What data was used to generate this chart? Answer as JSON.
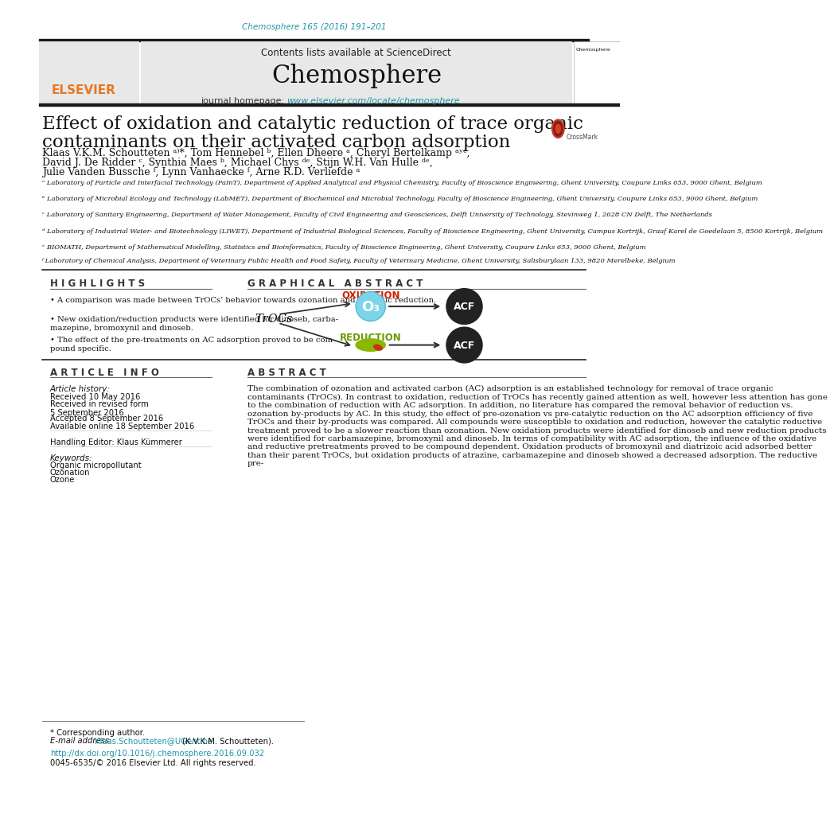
{
  "page_title_top": "Chemosphere 165 (2016) 191–201",
  "header_contents": "Contents lists available at ScienceDirect",
  "header_journal": "Chemosphere",
  "header_homepage_label": "journal homepage:",
  "header_homepage_url": "www.elsevier.com/locate/chemosphere",
  "article_title_line1": "Effect of oxidation and catalytic reduction of trace organic",
  "article_title_line2": "contaminants on their activated carbon adsorption",
  "authors": "Klaas V.K.M. Schoutteten ᵃ⁾*, Tom Hennebel ᵇ, Ellen Dheere ᵃ, Cheryl Bertelkamp ᵃʸᶜ,",
  "authors2": "David J. De Ridder ᶜ, Synthia Maes ᵇ, Michael Chys ᵈᵉ, Stijn W.H. Van Hulle ᵈᵉ,",
  "authors3": "Julie Vanden Bussche ᶠ, Lynn Vanhaecke ᶠ, Arne R.D. Verliefde ᵃ",
  "aff_a": "ᵃ Laboratory of Particle and Interfacial Technology (PaInT), Department of Applied Analytical and Physical Chemistry, Faculty of Bioscience Engineering, Ghent University, Coupure Links 653, 9000 Ghent, Belgium",
  "aff_b": "ᵇ Laboratory of Microbial Ecology and Technology (LabMET), Department of Biochemical and Microbial Technology, Faculty of Bioscience Engineering, Ghent University, Coupure Links 653, 9000 Ghent, Belgium",
  "aff_c": "ᶜ Laboratory of Sanitary Engineering, Department of Water Management, Faculty of Civil Engineering and Geosciences, Delft University of Technology, Stevinweg 1, 2628 CN Delft, The Netherlands",
  "aff_d": "ᵈ Laboratory of Industrial Water- and Biotechnology (LIWET), Department of Industrial Biological Sciences, Faculty of Bioscience Engineering, Ghent University, Campus Kortrijk, Graaf Karel de Goedelaan 5, 8500 Kortrijk, Belgium",
  "aff_e": "ᵉ BIOMATH, Department of Mathematical Modelling, Statistics and Bioinformatics, Faculty of Bioscience Engineering, Ghent University, Coupure Links 653, 9000 Ghent, Belgium",
  "aff_f": "ᶠ Laboratory of Chemical Analysis, Department of Veterinary Public Health and Food Safety, Faculty of Veterinary Medicine, Ghent University, Salisburylaan 133, 9820 Merelbeke, Belgium",
  "highlights_title": "H I G H L I G H T S",
  "graphical_abstract_title": "G R A P H I C A L   A B S T R A C T",
  "highlight1": "• A comparison was made between TrOCs’ behavior towards ozonation and catalytic reduction.",
  "highlight2": "• New oxidation/reduction products were identified for dinoseb, carba-\nmazepine, bromoxynil and dinoseb.",
  "highlight3": "• The effect of the pre-treatments on AC adsorption proved to be com-\npound specific.",
  "article_info_title": "A R T I C L E   I N F O",
  "abstract_title": "A B S T R A C T",
  "article_history": "Article history:",
  "received": "Received 10 May 2016",
  "revised": "Received in revised form\n5 September 2016",
  "accepted": "Accepted 8 September 2016",
  "available": "Available online 18 September 2016",
  "handling_editor": "Handling Editor: Klaus Kümmerer",
  "keywords_title": "Keywords:",
  "keyword1": "Organic micropollutant",
  "keyword2": "Ozonation",
  "keyword3": "Ozone",
  "abstract_text": "The combination of ozonation and activated carbon (AC) adsorption is an established technology for removal of trace organic contaminants (TrOCs). In contrast to oxidation, reduction of TrOCs has recently gained attention as well, however less attention has gone to the combination of reduction with AC adsorption. In addition, no literature has compared the removal behavior of reduction vs. ozonation by-products by AC. In this study, the effect of pre-ozonation vs pre-catalytic reduction on the AC adsorption efficiency of five TrOCs and their by-products was compared. All compounds were susceptible to oxidation and reduction, however the catalytic reductive treatment proved to be a slower reaction than ozonation. New oxidation products were identified for dinoseb and new reduction products were identified for carbamazepine, bromoxynil and dinoseb. In terms of compatibility with AC adsorption, the influence of the oxidative and reductive pretreatments proved to be compound dependent. Oxidation products of bromoxynil and diatrizoic acid adsorbed better than their parent TrOCs, but oxidation products of atrazine, carbamazepine and dinoseb showed a decreased adsorption. The reductive pre-",
  "footer_note": "* Corresponding author.",
  "footer_email_label": "E-mail address:",
  "footer_email": "Klaas.Schoutteten@UGent.be",
  "footer_email_name": "(K.V.K.M. Schoutteten).",
  "doi": "http://dx.doi.org/10.1016/j.chemosphere.2016.09.032",
  "issn": "0045-6535/© 2016 Elsevier Ltd. All rights reserved.",
  "color_teal": "#2196A8",
  "color_orange": "#E87722",
  "color_black": "#000000",
  "color_gray_bg": "#E8E8E8",
  "color_dark_line": "#1a1a1a",
  "color_red_oxidation": "#CC2200",
  "color_green_reduction": "#6a9a00",
  "color_dark_gray": "#444444"
}
